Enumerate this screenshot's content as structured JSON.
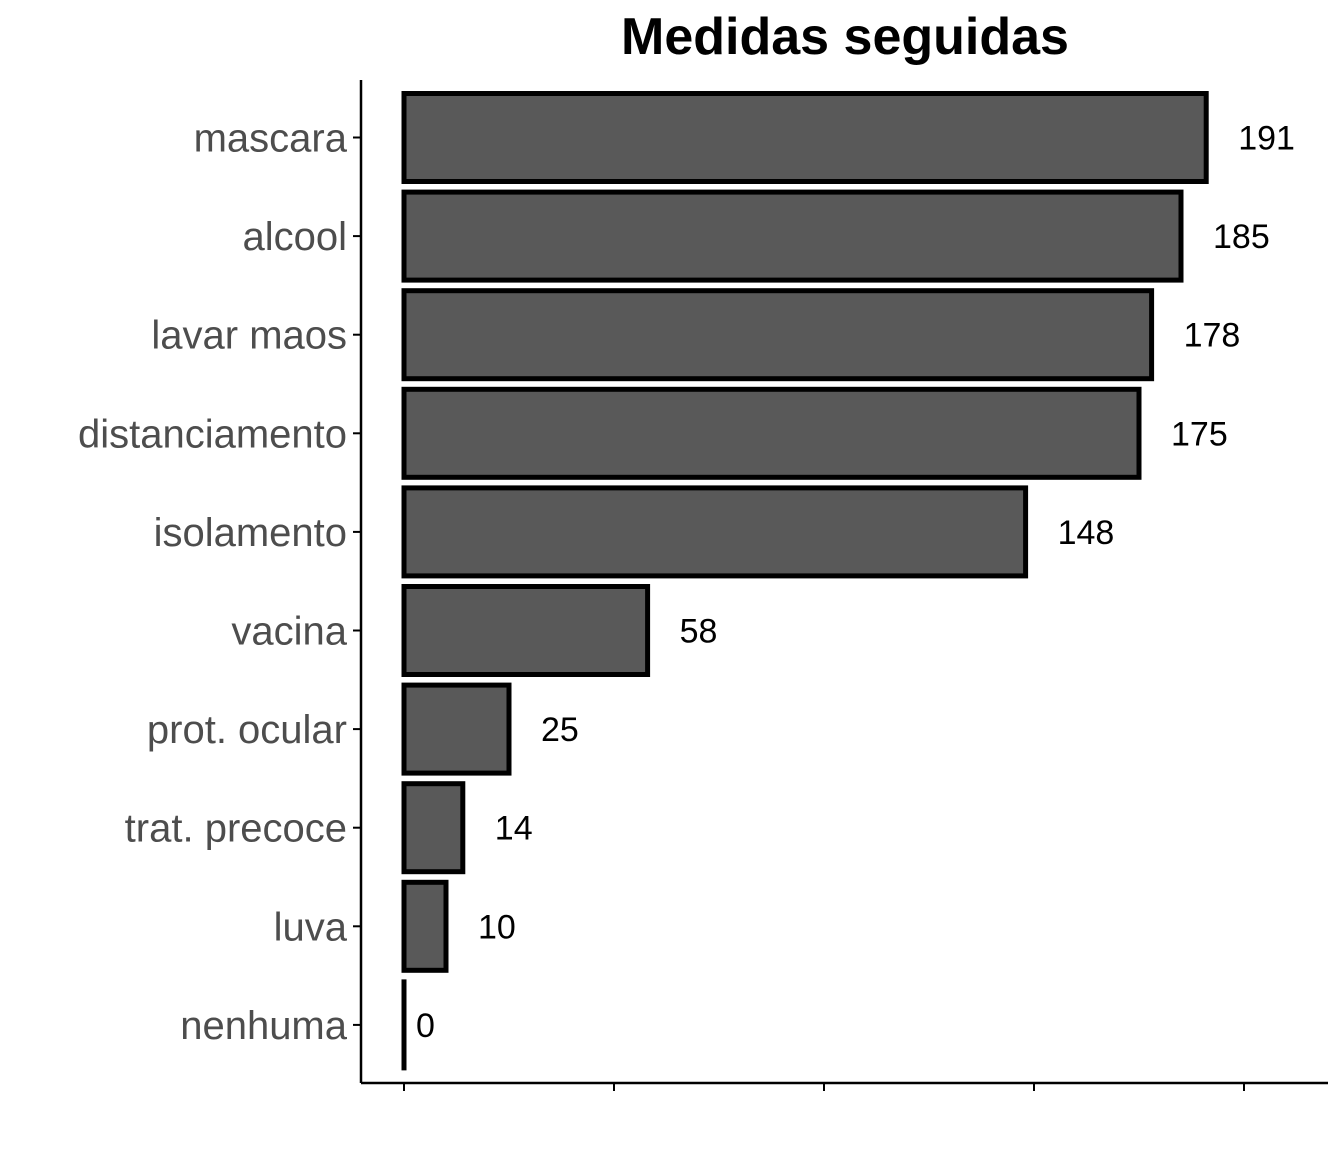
{
  "chart_data": {
    "type": "bar",
    "orientation": "horizontal",
    "title": "Medidas seguidas",
    "xlabel": "",
    "ylabel": "",
    "categories": [
      "mascara",
      "alcool",
      "lavar maos",
      "distanciamento",
      "isolamento",
      "vacina",
      "prot. ocular",
      "trat. precoce",
      "luva",
      "nenhuma"
    ],
    "values": [
      191,
      185,
      178,
      175,
      148,
      58,
      25,
      14,
      10,
      0
    ],
    "xlim": [
      0,
      220
    ],
    "x_tick_values": [
      0,
      50,
      100,
      150,
      200
    ],
    "x_tick_labels_visible": false,
    "data_labels": true,
    "grid": false,
    "colors": {
      "bar_fill": "#595959",
      "bar_outline": "#000000",
      "axis": "#000000",
      "category_text": "#4d4d4d",
      "value_text": "#000000"
    }
  }
}
